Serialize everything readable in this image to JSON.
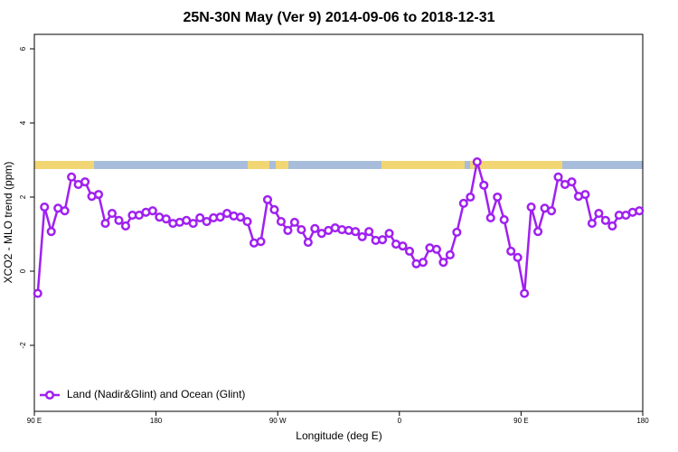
{
  "chart_data": {
    "type": "line",
    "title": "25N-30N May (Ver 9)   2014-09-06 to 2018-12-31",
    "x_label": "Longitude (deg E)",
    "y_label": "XCO2 - MLO trend (ppm)",
    "x": [
      92.5,
      97.5,
      102.5,
      107.5,
      112.5,
      117.5,
      122.5,
      127.5,
      132.5,
      137.5,
      142.5,
      147.5,
      152.5,
      157.5,
      162.5,
      167.5,
      172.5,
      177.5,
      182.5,
      187.5,
      192.5,
      197.5,
      202.5,
      207.5,
      212.5,
      217.5,
      222.5,
      227.5,
      232.5,
      237.5,
      242.5,
      247.5,
      252.5,
      257.5,
      262.5,
      267.5,
      272.5,
      277.5,
      282.5,
      287.5,
      292.5,
      297.5,
      302.5,
      307.5,
      312.5,
      317.5,
      322.5,
      327.5,
      332.5,
      337.5,
      342.5,
      347.5,
      352.5,
      357.5,
      362.5,
      367.5,
      372.5,
      377.5,
      382.5,
      387.5,
      392.5,
      397.5,
      402.5,
      407.5,
      412.5,
      417.5,
      422.5,
      427.5,
      432.5,
      437.5,
      442.5,
      447.5,
      452.5,
      457.5,
      462.5,
      467.5,
      472.5,
      477.5,
      482.5,
      487.5,
      492.5,
      497.5,
      502.5,
      507.5,
      512.5,
      517.5,
      522.5,
      527.5,
      532.5,
      537.5
    ],
    "series": [
      {
        "name": "Land (Nadir&Glint) and Ocean (Glint)",
        "color": "#a020f0",
        "values": [
          -0.6,
          1.73,
          1.07,
          1.7,
          1.63,
          2.54,
          2.34,
          2.41,
          2.02,
          2.07,
          1.29,
          1.56,
          1.37,
          1.22,
          1.51,
          1.51,
          1.59,
          1.63,
          1.46,
          1.41,
          1.29,
          1.32,
          1.37,
          1.29,
          1.44,
          1.34,
          1.44,
          1.46,
          1.56,
          1.49,
          1.46,
          1.34,
          0.76,
          0.8,
          1.93,
          1.66,
          1.34,
          1.1,
          1.32,
          1.12,
          0.78,
          1.15,
          1.02,
          1.1,
          1.17,
          1.12,
          1.1,
          1.07,
          0.93,
          1.07,
          0.83,
          0.85,
          1.02,
          0.73,
          0.68,
          0.54,
          0.2,
          0.24,
          0.63,
          0.59,
          0.24,
          0.44,
          1.05,
          1.83,
          2.0,
          2.95,
          2.32,
          1.44,
          2.0,
          1.39,
          0.54,
          0.37,
          -0.6,
          1.73,
          1.07,
          1.7,
          1.63,
          2.54,
          2.34,
          2.41,
          2.02,
          2.07,
          1.29,
          1.56,
          1.37,
          1.22,
          1.51,
          1.51,
          1.59,
          1.63
        ]
      }
    ],
    "xlim": [
      90,
      540
    ],
    "xticks": [
      {
        "value": 90,
        "label": "90 E"
      },
      180,
      {
        "value": 270,
        "label": "90 W"
      },
      {
        "value": 360,
        "label": "0"
      },
      {
        "value": 450,
        "label": "90 E"
      },
      {
        "value": 540,
        "label": "180"
      }
    ],
    "ylim": [
      -3.78,
      6.39
    ],
    "yticks": [
      -2,
      0,
      2,
      4,
      6
    ],
    "legend": "bottom-left"
  }
}
